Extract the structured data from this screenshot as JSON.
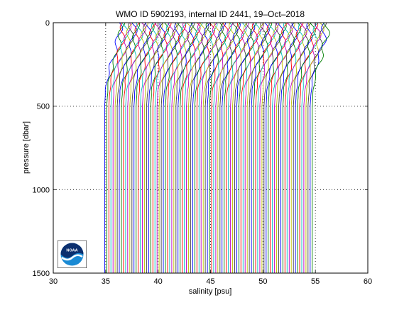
{
  "chart_data": {
    "type": "line",
    "title": "WMO ID 5902193, internal ID 2441, 19–Oct–2018",
    "xlabel": "salinity [psu]",
    "ylabel": "pressure [dbar]",
    "xlim": [
      30,
      60
    ],
    "ylim": [
      1500,
      0
    ],
    "y_reversed": true,
    "xticks": [
      30,
      35,
      40,
      45,
      50,
      55,
      60
    ],
    "xtick_labels": [
      "30",
      "35",
      "40",
      "45",
      "50",
      "55",
      "60"
    ],
    "yticks": [
      0,
      500,
      1000,
      1500
    ],
    "ytick_labels": [
      "0",
      "500",
      "1000",
      "1500"
    ],
    "grid": "dotted",
    "plot_style": "waterfall of salinity profiles, each successive profile offset by a constant in salinity",
    "profile_count": 100,
    "first_profile_surface_salinity": 36.3,
    "first_profile_deep_salinity": 34.9,
    "profile_offset_psu": 0.2,
    "series_colors": [
      "#0000ff",
      "#008000",
      "#ff0000",
      "#00bfbf",
      "#bf00bf",
      "#bfbf00",
      "#404040"
    ],
    "representative_profile": {
      "pressure": [
        0,
        50,
        100,
        150,
        200,
        250,
        300,
        350,
        400,
        500,
        700,
        1000,
        1300,
        1500
      ],
      "salinity": [
        36.3,
        36.3,
        36.2,
        36.0,
        35.8,
        35.5,
        35.3,
        35.1,
        35.0,
        34.9,
        34.9,
        34.9,
        34.9,
        34.9
      ]
    },
    "logo": {
      "icon": "noaa-logo",
      "text": "NOAA"
    }
  }
}
